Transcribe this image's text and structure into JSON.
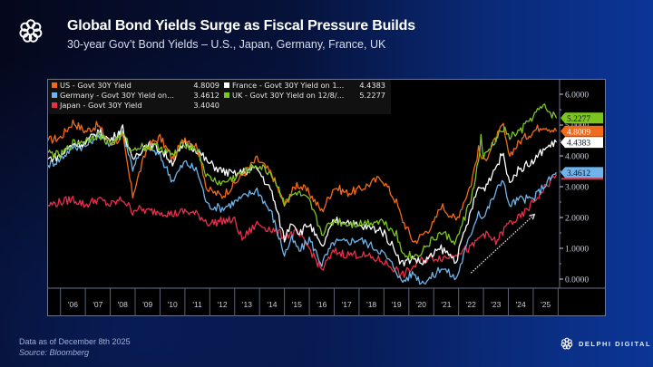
{
  "header": {
    "title": "Global Bond Yields Surge as Fiscal Pressure Builds",
    "subtitle": "30-year Gov’t Bond Yields – U.S., Japan, Germany, France, UK"
  },
  "footer": {
    "data_note": "Data as of December 8th 2025",
    "source": "Source: Bloomberg"
  },
  "brand": {
    "name": "DELPHI DIGITAL",
    "logo_icon": "delphi-knot-logo"
  },
  "chart_data": {
    "type": "line",
    "title": "",
    "xlabel": "",
    "ylabel": "",
    "ylim": [
      -0.4,
      6.5
    ],
    "xlim": [
      2005.5,
      2025.95
    ],
    "grid": false,
    "legend_position": "top-left",
    "y_ticks": [
      "6.0000",
      "5.0000",
      "4.0000",
      "3.0000",
      "2.0000",
      "1.0000",
      "0.0000"
    ],
    "y_tick_values": [
      6,
      5,
      4,
      3,
      2,
      1,
      0
    ],
    "x_ticks": [
      "'06",
      "'07",
      "'08",
      "'09",
      "'10",
      "'11",
      "'12",
      "'13",
      "'14",
      "'15",
      "'16",
      "'17",
      "'18",
      "'19",
      "'20",
      "'21",
      "'22",
      "'23",
      "'24",
      "'25"
    ],
    "x_tick_years": [
      2006,
      2007,
      2008,
      2009,
      2010,
      2011,
      2012,
      2013,
      2014,
      2015,
      2016,
      2017,
      2018,
      2019,
      2020,
      2021,
      2022,
      2023,
      2024,
      2025
    ],
    "series": [
      {
        "name": "US - Govt 30Y Yield",
        "last": "4.8009",
        "color": "#f26a1b",
        "x": [
          2005.5,
          2006,
          2006.5,
          2007,
          2007.5,
          2008,
          2008.5,
          2008.9,
          2009,
          2009.5,
          2010,
          2010.5,
          2011,
          2011.5,
          2011.9,
          2012.5,
          2013,
          2013.9,
          2014.5,
          2015,
          2015.5,
          2016,
          2016.5,
          2017,
          2017.5,
          2018,
          2018.9,
          2019.5,
          2019.7,
          2020.2,
          2020.5,
          2021,
          2021.3,
          2021.9,
          2022.5,
          2022.8,
          2023,
          2023.8,
          2024,
          2024.5,
          2025,
          2025.4,
          2025.93
        ],
        "values": [
          4.5,
          4.6,
          5.1,
          4.8,
          5.0,
          4.4,
          4.6,
          2.7,
          3.0,
          4.3,
          4.6,
          3.9,
          4.6,
          4.3,
          2.9,
          2.7,
          3.1,
          3.9,
          3.4,
          2.4,
          3.1,
          2.8,
          2.2,
          3.0,
          2.8,
          2.9,
          3.3,
          2.5,
          2.0,
          1.2,
          1.4,
          1.8,
          2.4,
          1.9,
          3.1,
          4.2,
          3.8,
          5.0,
          4.0,
          4.5,
          4.8,
          5.0,
          4.8009
        ]
      },
      {
        "name": "Germany - Govt 30Y Yield on...",
        "last": "3.4612",
        "color": "#6fb4ea",
        "x": [
          2005.5,
          2006,
          2006.5,
          2007,
          2007.5,
          2008,
          2008.5,
          2008.9,
          2009,
          2009.5,
          2010,
          2010.5,
          2011,
          2011.5,
          2011.9,
          2012.5,
          2013,
          2013.9,
          2014.5,
          2015,
          2015.3,
          2015.6,
          2016,
          2016.5,
          2017,
          2017.5,
          2018,
          2018.9,
          2019.5,
          2019.7,
          2020.2,
          2020.5,
          2021,
          2021.3,
          2021.9,
          2022.5,
          2022.8,
          2023,
          2023.8,
          2024,
          2024.5,
          2025,
          2025.4,
          2025.93
        ],
        "values": [
          3.7,
          3.9,
          4.3,
          4.3,
          4.7,
          4.4,
          4.8,
          3.6,
          3.8,
          4.3,
          4.0,
          3.2,
          3.8,
          3.5,
          2.4,
          2.3,
          2.5,
          2.9,
          2.1,
          0.8,
          1.3,
          0.9,
          1.3,
          0.5,
          1.2,
          1.2,
          1.3,
          0.9,
          0.3,
          -0.1,
          0.2,
          -0.1,
          0.1,
          0.4,
          0.0,
          1.5,
          2.2,
          2.0,
          3.3,
          2.4,
          2.6,
          2.6,
          3.0,
          3.4612
        ]
      },
      {
        "name": "Japan - Govt 30Y Yield",
        "last": "3.4040",
        "color": "#e8304a",
        "x": [
          2005.5,
          2006,
          2006.5,
          2007,
          2007.5,
          2008,
          2008.5,
          2008.9,
          2009,
          2009.5,
          2010,
          2010.5,
          2011,
          2011.5,
          2012,
          2012.5,
          2013,
          2013.3,
          2013.9,
          2014.5,
          2015,
          2015.5,
          2016,
          2016.5,
          2017,
          2017.5,
          2018,
          2018.9,
          2019.5,
          2019.7,
          2020.2,
          2020.5,
          2021,
          2021.5,
          2022,
          2022.5,
          2023,
          2023.5,
          2024,
          2024.5,
          2025,
          2025.4,
          2025.93
        ],
        "values": [
          2.4,
          2.5,
          2.6,
          2.4,
          2.6,
          2.4,
          2.6,
          2.2,
          2.3,
          2.2,
          2.2,
          2.1,
          2.2,
          2.1,
          1.8,
          1.9,
          1.9,
          1.3,
          1.8,
          1.6,
          1.4,
          1.5,
          1.0,
          0.3,
          0.9,
          0.8,
          0.8,
          0.6,
          0.3,
          0.1,
          0.4,
          0.6,
          0.7,
          0.7,
          0.9,
          1.0,
          1.5,
          1.2,
          1.8,
          2.0,
          2.5,
          2.9,
          3.404
        ]
      },
      {
        "name": "France - Govt 30Y Yield on 1...",
        "last": "4.4383",
        "color": "#ffffff",
        "x": [
          2005.5,
          2006,
          2006.5,
          2007,
          2007.5,
          2008,
          2008.5,
          2008.9,
          2009,
          2009.5,
          2010,
          2010.5,
          2011,
          2011.5,
          2011.9,
          2012.5,
          2013,
          2013.9,
          2014.5,
          2015,
          2015.3,
          2015.6,
          2016,
          2016.5,
          2017,
          2017.5,
          2018,
          2018.9,
          2019.5,
          2019.7,
          2020.2,
          2020.5,
          2021,
          2021.3,
          2021.9,
          2022.5,
          2022.8,
          2023,
          2023.8,
          2024,
          2024.5,
          2025,
          2025.4,
          2025.93
        ],
        "values": [
          3.9,
          4.0,
          4.4,
          4.4,
          4.8,
          4.5,
          4.9,
          3.8,
          4.0,
          4.4,
          4.2,
          3.8,
          4.4,
          4.2,
          3.8,
          3.5,
          3.4,
          3.6,
          2.8,
          1.3,
          1.9,
          1.5,
          1.8,
          1.0,
          1.9,
          1.9,
          1.7,
          1.6,
          0.9,
          0.5,
          0.7,
          0.5,
          0.8,
          1.0,
          0.6,
          2.2,
          3.0,
          2.9,
          4.1,
          3.2,
          3.6,
          3.8,
          4.2,
          4.4383
        ]
      },
      {
        "name": "UK - Govt 30Y Yield on 12/8/...",
        "last": "5.2277",
        "color": "#7cc520",
        "x": [
          2005.5,
          2006,
          2006.5,
          2007,
          2007.5,
          2008,
          2008.5,
          2008.9,
          2009,
          2009.5,
          2010,
          2010.5,
          2011,
          2011.5,
          2011.9,
          2012.5,
          2013,
          2013.9,
          2014.5,
          2015,
          2015.5,
          2016,
          2016.5,
          2017,
          2017.5,
          2018,
          2018.9,
          2019.5,
          2019.7,
          2020.2,
          2020.5,
          2021,
          2021.3,
          2021.9,
          2022.5,
          2022.8,
          2022.9,
          2023,
          2023.8,
          2024,
          2024.5,
          2025,
          2025.4,
          2025.93
        ],
        "values": [
          4.1,
          4.0,
          4.4,
          4.5,
          4.7,
          4.4,
          4.7,
          4.1,
          4.3,
          4.3,
          4.3,
          4.0,
          4.4,
          4.2,
          3.3,
          3.1,
          3.3,
          3.7,
          3.4,
          2.5,
          2.8,
          2.5,
          1.5,
          1.9,
          1.8,
          1.8,
          1.9,
          1.5,
          0.9,
          0.7,
          0.9,
          1.3,
          1.5,
          1.2,
          2.6,
          3.8,
          4.6,
          3.9,
          4.9,
          4.6,
          4.8,
          5.3,
          5.6,
          5.2277
        ]
      }
    ],
    "annotations": [
      {
        "type": "arrow",
        "style": "dotted",
        "from": [
          2022.5,
          0.2
        ],
        "to": [
          2025.05,
          2.1
        ]
      }
    ]
  }
}
